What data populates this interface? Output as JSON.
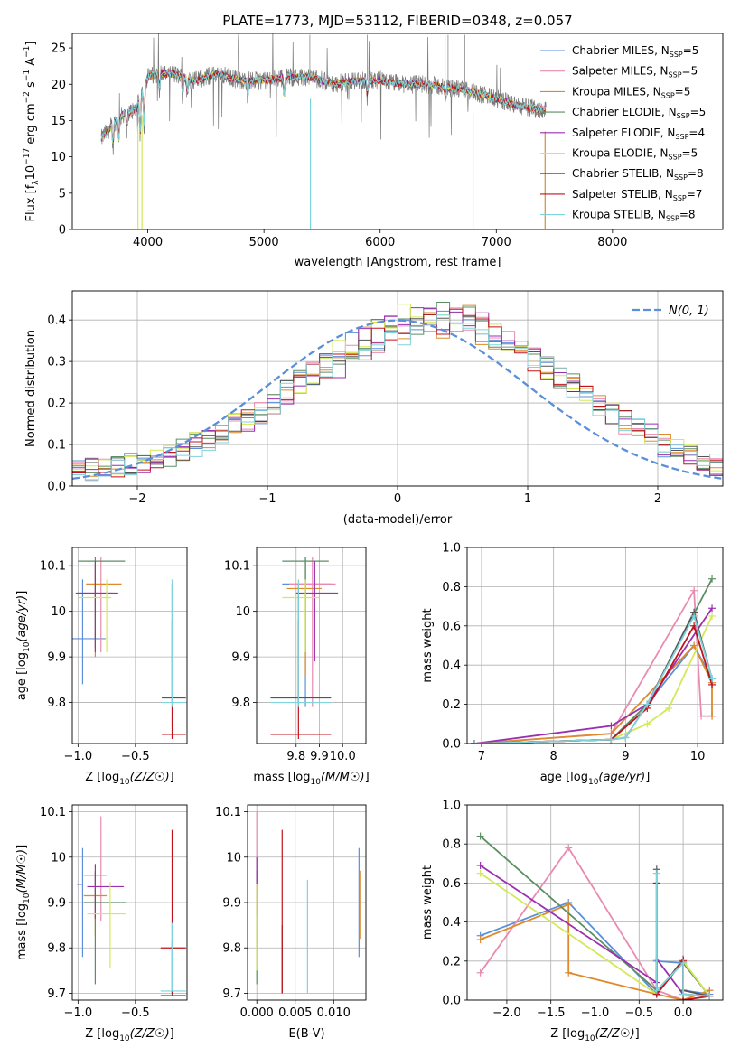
{
  "colors": {
    "chabrier_miles": "#5b8fd9",
    "salpeter_miles": "#e98bb0",
    "kroupa_miles": "#de8a2c",
    "chabrier_elodie": "#5e8e63",
    "salpeter_elodie": "#9b2fb0",
    "kroupa_elodie": "#d4e85a",
    "chabrier_stelib": "#555555",
    "salpeter_stelib": "#c0131d",
    "kroupa_stelib": "#7fd3db",
    "spectrum_data": "#7a7a7a",
    "normal_curve": "#5b8fd9",
    "grid": "#b0b0b0"
  },
  "legend_labels": [
    "Chabrier MILES, N",
    "Salpeter MILES, N",
    "Kroupa MILES, N",
    "Chabrier ELODIE, N",
    "Salpeter ELODIE, N",
    "Kroupa ELODIE, N",
    "Chabrier STELIB, N",
    "Salpeter STELIB, N",
    "Kroupa STELIB, N"
  ],
  "legend_sub": "SSP",
  "legend_n": [
    "=5",
    "=5",
    "=5",
    "=5",
    "=4",
    "=5",
    "=8",
    "=7",
    "=8"
  ],
  "chart_data": [
    {
      "type": "line",
      "title": "PLATE=1773, MJD=53112, FIBERID=0348, z=0.057",
      "xlabel": "wavelength [Angstrom, rest frame]",
      "ylabel_parts": [
        "Flux [f",
        "λ",
        "10",
        "−17",
        " erg cm",
        "−2",
        " s",
        "−1",
        " A",
        "−1",
        "]"
      ],
      "xlim": [
        3350,
        8950
      ],
      "ylim": [
        0,
        27
      ],
      "xticks": [
        4000,
        5000,
        6000,
        7000,
        8000
      ],
      "yticks": [
        0,
        5,
        10,
        15,
        20,
        25
      ],
      "grid": false,
      "legend_position": "upper right",
      "continuum_x": [
        3600,
        3700,
        3800,
        3900,
        4000,
        4100,
        4200,
        4400,
        4600,
        4800,
        5000,
        5200,
        5400,
        5600,
        5800,
        6000,
        6200,
        6400,
        6600,
        6800,
        7000,
        7200,
        7400
      ],
      "continuum_y": [
        12.5,
        14.5,
        16,
        16.5,
        21,
        21.5,
        21.5,
        20.5,
        21.5,
        20.5,
        20.5,
        21,
        21,
        20,
        20.5,
        20.5,
        20,
        20,
        19.5,
        19,
        18,
        17,
        16.5
      ]
    },
    {
      "type": "bar",
      "subtype": "step-histogram",
      "xlabel": "(data-model)/error",
      "ylabel": "Normed distribution",
      "xlim": [
        -2.5,
        2.5
      ],
      "ylim": [
        0,
        0.47
      ],
      "xticks": [
        -2,
        -1,
        0,
        1,
        2
      ],
      "xtick_labels": [
        "−2",
        "−1",
        "0",
        "1",
        "2"
      ],
      "yticks": [
        0.0,
        0.1,
        0.2,
        0.3,
        0.4
      ],
      "grid": true,
      "legend_label": "N(0, 1)",
      "bin_width": 0.1,
      "bin_start": -2.5,
      "base": [
        0.035,
        0.04,
        0.045,
        0.05,
        0.055,
        0.06,
        0.065,
        0.075,
        0.085,
        0.1,
        0.115,
        0.13,
        0.145,
        0.16,
        0.18,
        0.2,
        0.225,
        0.25,
        0.27,
        0.29,
        0.31,
        0.325,
        0.345,
        0.36,
        0.375,
        0.385,
        0.39,
        0.395,
        0.4,
        0.395,
        0.385,
        0.375,
        0.36,
        0.345,
        0.325,
        0.305,
        0.285,
        0.265,
        0.24,
        0.22,
        0.195,
        0.175,
        0.155,
        0.135,
        0.12,
        0.1,
        0.085,
        0.07,
        0.06,
        0.05
      ]
    },
    {
      "type": "scatter",
      "subtype": "error-crosses",
      "xlabel": "Z [log10(Z/Z☉)]",
      "ylabel": "age  [log10(age/yr)]",
      "xlim": [
        -1.05,
        -0.05
      ],
      "ylim": [
        9.71,
        10.14
      ],
      "xticks": [
        -1.0,
        -0.5
      ],
      "xtick_labels": [
        "−1.0",
        "−0.5"
      ],
      "yticks": [
        9.8,
        9.9,
        10.0,
        10.1
      ],
      "grid": true,
      "points": [
        {
          "x": -0.96,
          "y": 9.94,
          "xerr": [
            0.15,
            0.2
          ],
          "yerr": [
            0.1,
            0.13
          ]
        },
        {
          "x": -0.8,
          "y": 10.04,
          "xerr": [
            0.2,
            0.1
          ],
          "yerr": [
            0.13,
            0.08
          ]
        },
        {
          "x": -0.85,
          "y": 10.06,
          "xerr": [
            0.08,
            0.23
          ],
          "yerr": [
            0.16,
            0.04
          ]
        },
        {
          "x": -0.85,
          "y": 10.11,
          "xerr": [
            0.15,
            0.26
          ],
          "yerr": [
            0.19,
            0.01
          ]
        },
        {
          "x": -0.85,
          "y": 10.04,
          "xerr": [
            0.17,
            0.2
          ],
          "yerr": [
            0.13,
            0.07
          ]
        },
        {
          "x": -0.75,
          "y": 10.03,
          "xerr": [
            0.25,
            0.04
          ],
          "yerr": [
            0.12,
            0.04
          ]
        },
        {
          "x": -0.18,
          "y": 9.81,
          "xerr": [
            0.09,
            0.12
          ],
          "yerr": [
            0.01,
            0.25
          ]
        },
        {
          "x": -0.18,
          "y": 9.73,
          "xerr": [
            0.09,
            0.12
          ],
          "yerr": [
            0.01,
            0.25
          ]
        },
        {
          "x": -0.18,
          "y": 9.8,
          "xerr": [
            0.09,
            0.12
          ],
          "yerr": [
            0.01,
            0.27
          ]
        }
      ]
    },
    {
      "type": "scatter",
      "subtype": "error-crosses",
      "xlabel": "mass [log10(M/M☉)]",
      "xlim": [
        9.63,
        10.1
      ],
      "ylim": [
        9.71,
        10.14
      ],
      "xticks": [
        9.8,
        9.9,
        10.0
      ],
      "xtick_labels": [
        "9.8",
        "9.9",
        "10.0"
      ],
      "yticks": [
        9.8,
        9.9,
        10.0,
        10.1
      ],
      "grid": true,
      "points": [
        {
          "x": 9.84,
          "y": 10.06,
          "xerr": [
            0.1,
            0.11
          ],
          "yerr": [
            0.27,
            0.06
          ]
        },
        {
          "x": 9.87,
          "y": 10.06,
          "xerr": [
            0.1,
            0.1
          ],
          "yerr": [
            0.27,
            0.06
          ]
        },
        {
          "x": 9.84,
          "y": 10.05,
          "xerr": [
            0.08,
            0.07
          ],
          "yerr": [
            0.19,
            0.06
          ]
        },
        {
          "x": 9.84,
          "y": 10.11,
          "xerr": [
            0.1,
            0.1
          ],
          "yerr": [
            0.2,
            0.01
          ]
        },
        {
          "x": 9.88,
          "y": 10.04,
          "xerr": [
            0.08,
            0.1
          ],
          "yerr": [
            0.15,
            0.07
          ]
        },
        {
          "x": 9.84,
          "y": 10.03,
          "xerr": [
            0.1,
            0.06
          ],
          "yerr": [
            0.12,
            0.04
          ]
        },
        {
          "x": 9.81,
          "y": 9.81,
          "xerr": [
            0.12,
            0.14
          ],
          "yerr": [
            0.01,
            0.25
          ]
        },
        {
          "x": 9.81,
          "y": 9.73,
          "xerr": [
            0.12,
            0.14
          ],
          "yerr": [
            0.01,
            0.25
          ]
        },
        {
          "x": 9.81,
          "y": 9.8,
          "xerr": [
            0.12,
            0.14
          ],
          "yerr": [
            0.01,
            0.27
          ]
        }
      ]
    },
    {
      "type": "line",
      "xlabel": "age  [log10(age/yr)]",
      "ylabel": "mass weight",
      "xlim": [
        6.8,
        10.35
      ],
      "ylim": [
        0,
        1
      ],
      "xticks": [
        7,
        8,
        9,
        10
      ],
      "yticks": [
        0.0,
        0.2,
        0.4,
        0.6,
        0.8,
        1.0
      ],
      "grid": true,
      "series": [
        {
          "x": [
            6.9,
            8.8,
            9.3,
            9.95,
            10.2
          ],
          "y": [
            0.0,
            0.02,
            0.2,
            0.5,
            0.33
          ]
        },
        {
          "x": [
            6.9,
            8.8,
            9.95,
            10.05,
            10.2
          ],
          "y": [
            0.0,
            0.05,
            0.78,
            0.14,
            0.14
          ]
        },
        {
          "x": [
            6.9,
            8.8,
            9.95,
            10.2,
            10.2
          ],
          "y": [
            0.0,
            0.05,
            0.5,
            0.31,
            0.14
          ]
        },
        {
          "x": [
            6.9,
            8.8,
            9.3,
            10.2
          ],
          "y": [
            0.0,
            0.02,
            0.2,
            0.84
          ]
        },
        {
          "x": [
            6.9,
            8.8,
            9.3,
            10.2
          ],
          "y": [
            0.0,
            0.09,
            0.2,
            0.69
          ]
        },
        {
          "x": [
            6.9,
            8.8,
            9.3,
            9.6,
            10.2
          ],
          "y": [
            0.0,
            0.02,
            0.1,
            0.18,
            0.65
          ]
        },
        {
          "x": [
            6.9,
            8.8,
            9.0,
            9.3,
            9.95,
            10.2
          ],
          "y": [
            0.0,
            0.02,
            0.03,
            0.2,
            0.67,
            0.33
          ]
        },
        {
          "x": [
            6.9,
            8.8,
            9.3,
            9.95,
            10.2
          ],
          "y": [
            0.0,
            0.02,
            0.18,
            0.6,
            0.3
          ]
        },
        {
          "x": [
            6.9,
            8.8,
            9.0,
            9.3,
            9.95,
            10.2
          ],
          "y": [
            0.0,
            0.02,
            0.03,
            0.2,
            0.65,
            0.33
          ]
        }
      ]
    },
    {
      "type": "scatter",
      "subtype": "error-crosses",
      "xlabel": "Z [log10(Z/Z☉)]",
      "ylabel": "mass [log10(M/M☉)]",
      "xlim": [
        -1.05,
        -0.05
      ],
      "ylim": [
        9.685,
        10.115
      ],
      "xticks": [
        -1.0,
        -0.5
      ],
      "xtick_labels": [
        "−1.0",
        "−0.5"
      ],
      "yticks": [
        9.7,
        9.8,
        9.9,
        10.0,
        10.1
      ],
      "grid": true,
      "points": [
        {
          "x": -0.96,
          "y": 9.94,
          "xerr": [
            0.05,
            0.0
          ],
          "yerr": [
            0.16,
            0.08
          ]
        },
        {
          "x": -0.8,
          "y": 9.96,
          "xerr": [
            0.15,
            0.05
          ],
          "yerr": [
            0.1,
            0.13
          ]
        },
        {
          "x": -0.85,
          "y": 9.915,
          "xerr": [
            0.1,
            0.1
          ],
          "yerr": [
            0.09,
            0.05
          ]
        },
        {
          "x": -0.85,
          "y": 9.9,
          "xerr": [
            0.1,
            0.27
          ],
          "yerr": [
            0.18,
            0.07
          ]
        },
        {
          "x": -0.85,
          "y": 9.935,
          "xerr": [
            0.07,
            0.25
          ],
          "yerr": [
            0.07,
            0.05
          ]
        },
        {
          "x": -0.72,
          "y": 9.875,
          "xerr": [
            0.2,
            0.14
          ],
          "yerr": [
            0.12,
            0.07
          ]
        },
        {
          "x": -0.18,
          "y": 9.695,
          "xerr": [
            0.1,
            0.12
          ],
          "yerr": [
            0.0,
            0.12
          ]
        },
        {
          "x": -0.18,
          "y": 9.8,
          "xerr": [
            0.1,
            0.12
          ],
          "yerr": [
            0.1,
            0.26
          ]
        },
        {
          "x": -0.18,
          "y": 9.705,
          "xerr": [
            0.1,
            0.12
          ],
          "yerr": [
            0.0,
            0.15
          ]
        }
      ]
    },
    {
      "type": "scatter",
      "subtype": "vertical-error-bars",
      "xlabel": "E(B-V)",
      "xlim": [
        -0.0012,
        0.0142
      ],
      "ylim": [
        9.685,
        10.115
      ],
      "xticks": [
        0.0,
        0.005,
        0.01
      ],
      "xtick_labels": [
        "0.000",
        "0.005",
        "0.010"
      ],
      "yticks": [
        9.7,
        9.8,
        9.9,
        10.0,
        10.1
      ],
      "grid": true,
      "points": [
        {
          "x": 0.0133,
          "y": 9.9,
          "yerr": [
            0.12,
            0.12
          ]
        },
        {
          "x": 0.0,
          "y": 10.0,
          "yerr": [
            0.2,
            0.1
          ]
        },
        {
          "x": 0.0134,
          "y": 9.9,
          "yerr": [
            0.08,
            0.07
          ]
        },
        {
          "x": 0.0,
          "y": 9.85,
          "yerr": [
            0.13,
            0.12
          ]
        },
        {
          "x": 0.0,
          "y": 9.94,
          "yerr": [
            0.07,
            0.06
          ]
        },
        {
          "x": 0.0,
          "y": 9.85,
          "yerr": [
            0.1,
            0.09
          ]
        },
        {
          "x": 0.0033,
          "y": 9.85,
          "yerr": [
            0.15,
            0.0
          ]
        },
        {
          "x": 0.0033,
          "y": 9.88,
          "yerr": [
            0.18,
            0.18
          ]
        },
        {
          "x": 0.0066,
          "y": 9.82,
          "yerr": [
            0.12,
            0.13
          ]
        }
      ]
    },
    {
      "type": "line",
      "xlabel": "Z [log10(Z/Z☉)]",
      "ylabel": "mass weight",
      "xlim": [
        -2.45,
        0.45
      ],
      "ylim": [
        0,
        1
      ],
      "xticks": [
        -2.0,
        -1.5,
        -1.0,
        -0.5,
        0.0
      ],
      "xtick_labels": [
        "−2.0",
        "−1.5",
        "−1.0",
        "−0.5",
        "0.0"
      ],
      "yticks": [
        0.0,
        0.2,
        0.4,
        0.6,
        0.8,
        1.0
      ],
      "grid": true,
      "series": [
        {
          "x": [
            -2.3,
            -1.3,
            -0.3,
            -0.3,
            0.0,
            0.0,
            0.3
          ],
          "y": [
            0.33,
            0.5,
            0.03,
            0.2,
            0.19,
            0.05,
            0.03
          ]
        },
        {
          "x": [
            -2.3,
            -1.3,
            -0.3,
            0.0,
            0.3
          ],
          "y": [
            0.14,
            0.78,
            0.05,
            0.0,
            0.05
          ]
        },
        {
          "x": [
            -2.3,
            -1.3,
            -1.3,
            -0.3,
            0.0,
            0.3
          ],
          "y": [
            0.31,
            0.49,
            0.14,
            0.03,
            0.0,
            0.05
          ]
        },
        {
          "x": [
            -2.3,
            -0.3,
            0.0,
            0.3
          ],
          "y": [
            0.84,
            0.05,
            0.19,
            0.02
          ]
        },
        {
          "x": [
            -2.3,
            -0.3,
            -0.3,
            0.0,
            0.3
          ],
          "y": [
            0.69,
            0.09,
            0.21,
            0.03,
            0.02
          ]
        },
        {
          "x": [
            -2.3,
            -0.3,
            0.0,
            0.3
          ],
          "y": [
            0.65,
            0.03,
            0.2,
            0.02
          ]
        },
        {
          "x": [
            -0.3,
            -0.3,
            0.0,
            0.0,
            0.3
          ],
          "y": [
            0.67,
            0.03,
            0.21,
            0.05,
            0.02
          ]
        },
        {
          "x": [
            -0.3,
            -0.3,
            0.0,
            0.0,
            0.3
          ],
          "y": [
            0.6,
            0.03,
            0.2,
            0.0,
            0.02
          ]
        },
        {
          "x": [
            -0.3,
            -0.3,
            0.0,
            0.0,
            0.3
          ],
          "y": [
            0.65,
            0.05,
            0.19,
            0.03,
            0.02
          ]
        }
      ]
    }
  ]
}
